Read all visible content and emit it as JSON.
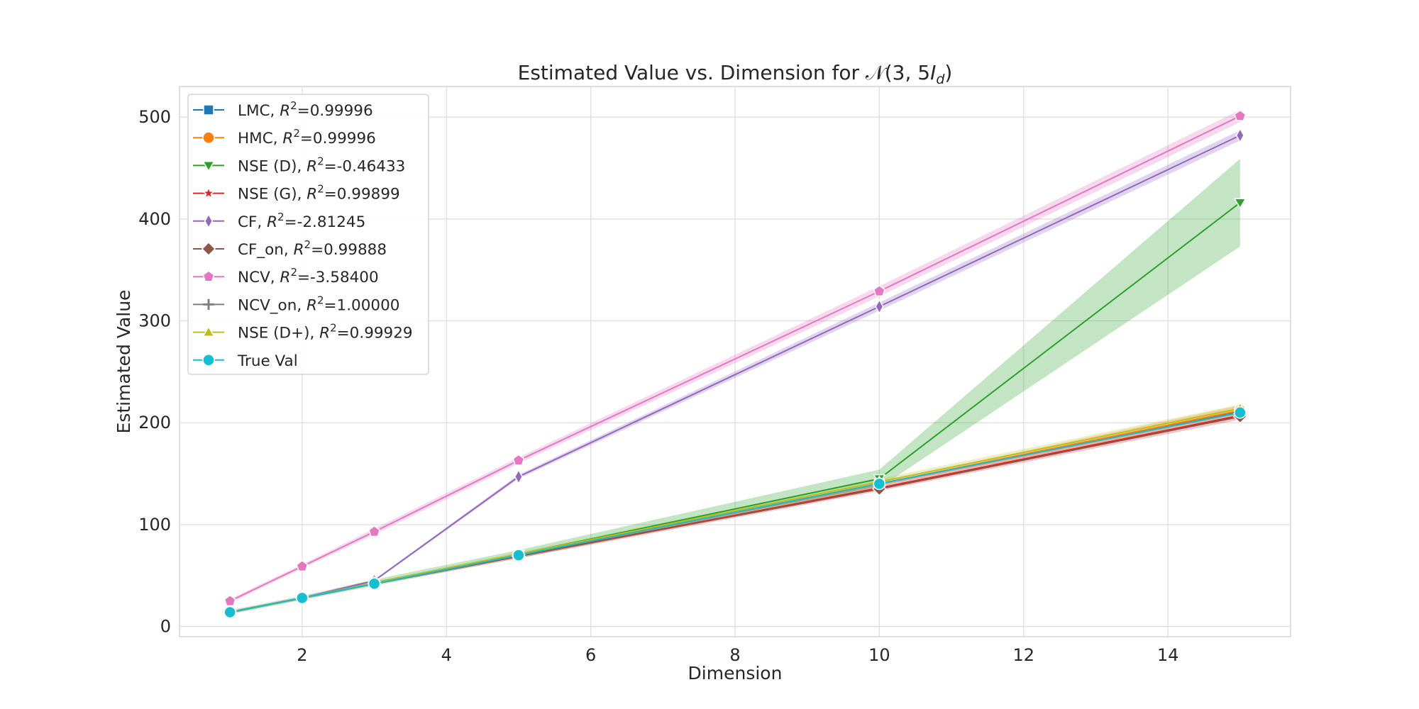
{
  "chart_data": {
    "type": "line",
    "title_prefix": "Estimated Value vs. Dimension for",
    "title_math": "𝒩(3, 5",
    "title_math_var": "I",
    "title_math_sub": "d",
    "title_math_close": ")",
    "xlabel": "Dimension",
    "ylabel": "Estimated Value",
    "xlim": [
      0.3,
      15.7
    ],
    "ylim": [
      -10,
      530
    ],
    "xticks": [
      2,
      4,
      6,
      8,
      10,
      12,
      14
    ],
    "yticks": [
      0,
      100,
      200,
      300,
      400,
      500
    ],
    "grid": true,
    "legend_position": "top-left",
    "x": [
      1,
      2,
      3,
      5,
      10,
      15
    ],
    "series": [
      {
        "name": "LMC, ",
        "r2": "=0.99996",
        "color": "#1f77b4",
        "marker": "square",
        "values": [
          14,
          28,
          42,
          70,
          140,
          211
        ],
        "band": null
      },
      {
        "name": "HMC, ",
        "r2": "=0.99996",
        "color": "#ff7f0e",
        "marker": "circle",
        "values": [
          14,
          28,
          42,
          70,
          140,
          212
        ],
        "band": [
          [
            13,
            15
          ],
          [
            27,
            29
          ],
          [
            41,
            43
          ],
          [
            69,
            71
          ],
          [
            138,
            142
          ],
          [
            207,
            217
          ]
        ]
      },
      {
        "name": "NSE (D), ",
        "r2": "=-0.46433",
        "color": "#2ca02c",
        "marker": "triangle-down",
        "values": [
          14,
          28,
          43,
          71,
          145,
          416
        ],
        "band": [
          [
            12,
            16
          ],
          [
            26,
            30
          ],
          [
            40,
            46
          ],
          [
            67,
            75
          ],
          [
            136,
            154
          ],
          [
            373,
            459
          ]
        ]
      },
      {
        "name": "NSE (G), ",
        "r2": "=0.99899",
        "color": "#d62728",
        "marker": "star",
        "values": [
          14,
          28,
          42,
          69,
          136,
          207
        ],
        "band": [
          [
            13,
            15
          ],
          [
            27,
            29
          ],
          [
            41,
            43
          ],
          [
            67,
            71
          ],
          [
            133,
            139
          ],
          [
            203,
            211
          ]
        ]
      },
      {
        "name": "CF, ",
        "r2": "=-2.81245",
        "color": "#9467bd",
        "marker": "thin-diamond",
        "values": [
          14,
          28,
          45,
          147,
          314,
          482
        ],
        "band": [
          [
            13,
            15
          ],
          [
            27,
            29
          ],
          [
            44,
            46
          ],
          [
            145,
            149
          ],
          [
            310,
            318
          ],
          [
            477,
            487
          ]
        ]
      },
      {
        "name": "CF_on, ",
        "r2": "=0.99888",
        "color": "#8c564b",
        "marker": "diamond",
        "values": [
          14,
          28,
          42,
          69,
          135,
          206
        ],
        "band": null
      },
      {
        "name": "NCV, ",
        "r2": "=-3.58400",
        "color": "#e377c2",
        "marker": "pentagon",
        "values": [
          25,
          59,
          93,
          163,
          329,
          501
        ],
        "band": [
          [
            23,
            27
          ],
          [
            57,
            61
          ],
          [
            90,
            96
          ],
          [
            160,
            166
          ],
          [
            324,
            334
          ],
          [
            495,
            507
          ]
        ]
      },
      {
        "name": "NCV_on, ",
        "r2": "=1.00000",
        "color": "#7f7f7f",
        "marker": "plus",
        "values": [
          14,
          28,
          42,
          70,
          140,
          210
        ],
        "band": null
      },
      {
        "name": "NSE (D+), ",
        "r2": "=0.99929",
        "color": "#bcbd22",
        "marker": "triangle-up",
        "values": [
          14,
          28,
          43,
          71,
          142,
          214
        ],
        "band": [
          [
            13,
            15
          ],
          [
            27,
            29
          ],
          [
            42,
            44
          ],
          [
            69,
            73
          ],
          [
            139,
            145
          ],
          [
            210,
            218
          ]
        ]
      },
      {
        "name": "True Val",
        "r2": "",
        "color": "#17becf",
        "marker": "circle",
        "values": [
          14,
          28,
          42,
          70,
          140,
          210
        ],
        "band": null
      }
    ]
  }
}
